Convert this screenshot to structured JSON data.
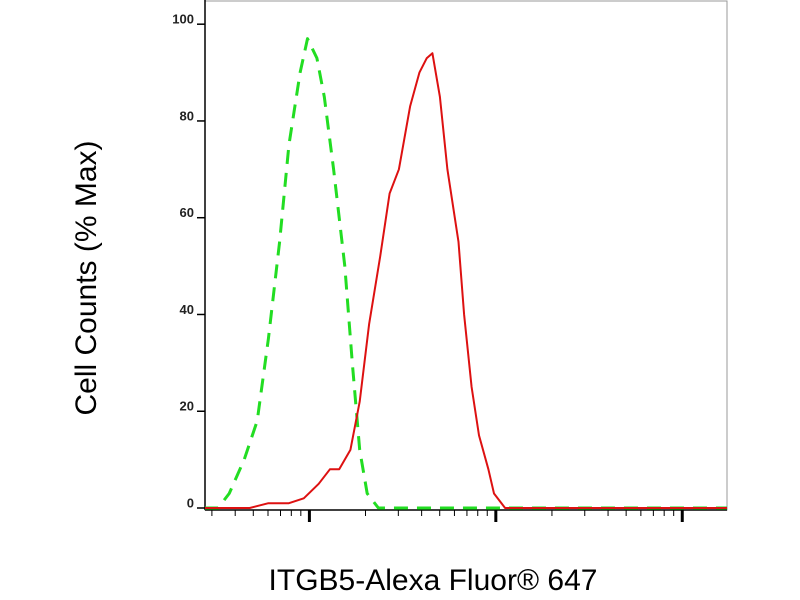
{
  "chart_data": {
    "type": "line",
    "y_label": "Cell Counts (% Max)",
    "x_label": "ITGB5-Alexa Fluor® 647",
    "xlim": [
      0.44,
      3.24
    ],
    "xticks": [
      1,
      2,
      3
    ],
    "xminorticks": [
      0.477,
      0.602,
      0.699,
      0.778,
      0.845,
      0.903,
      0.954,
      1.301,
      1.477,
      1.602,
      1.699,
      1.778,
      1.845,
      1.903,
      1.954,
      2.301,
      2.477,
      2.602,
      2.699,
      2.778,
      2.845,
      2.903,
      2.954
    ],
    "ylim": [
      0,
      105
    ],
    "yticks": [
      0,
      20,
      40,
      60,
      80,
      100
    ],
    "series": [
      {
        "color": "#22dd22",
        "dashed": true,
        "x": [
          0.44,
          0.51,
          0.57,
          0.65,
          0.72,
          0.78,
          0.84,
          0.89,
          0.95,
          0.99,
          1.04,
          1.08,
          1.13,
          1.19,
          1.23,
          1.27,
          1.31,
          1.37,
          1.48,
          1.75,
          2.02,
          3.24
        ],
        "values": [
          0,
          0,
          3,
          10,
          18,
          35,
          55,
          75,
          90,
          97,
          93,
          85,
          70,
          50,
          30,
          12,
          3,
          0,
          0,
          0,
          0,
          0
        ]
      },
      {
        "color": "#dd1111",
        "dashed": false,
        "x": [
          0.44,
          0.68,
          0.78,
          0.89,
          0.97,
          1.05,
          1.11,
          1.16,
          1.22,
          1.27,
          1.32,
          1.38,
          1.43,
          1.48,
          1.54,
          1.59,
          1.63,
          1.66,
          1.7,
          1.74,
          1.8,
          1.83,
          1.87,
          1.91,
          1.96,
          1.99,
          2.05,
          2.29,
          3.24
        ],
        "values": [
          0,
          0,
          1,
          1,
          2,
          5,
          8,
          8,
          12,
          22,
          38,
          52,
          65,
          70,
          83,
          90,
          93,
          94,
          85,
          70,
          55,
          40,
          25,
          15,
          8,
          3,
          0,
          0,
          0
        ]
      }
    ]
  }
}
